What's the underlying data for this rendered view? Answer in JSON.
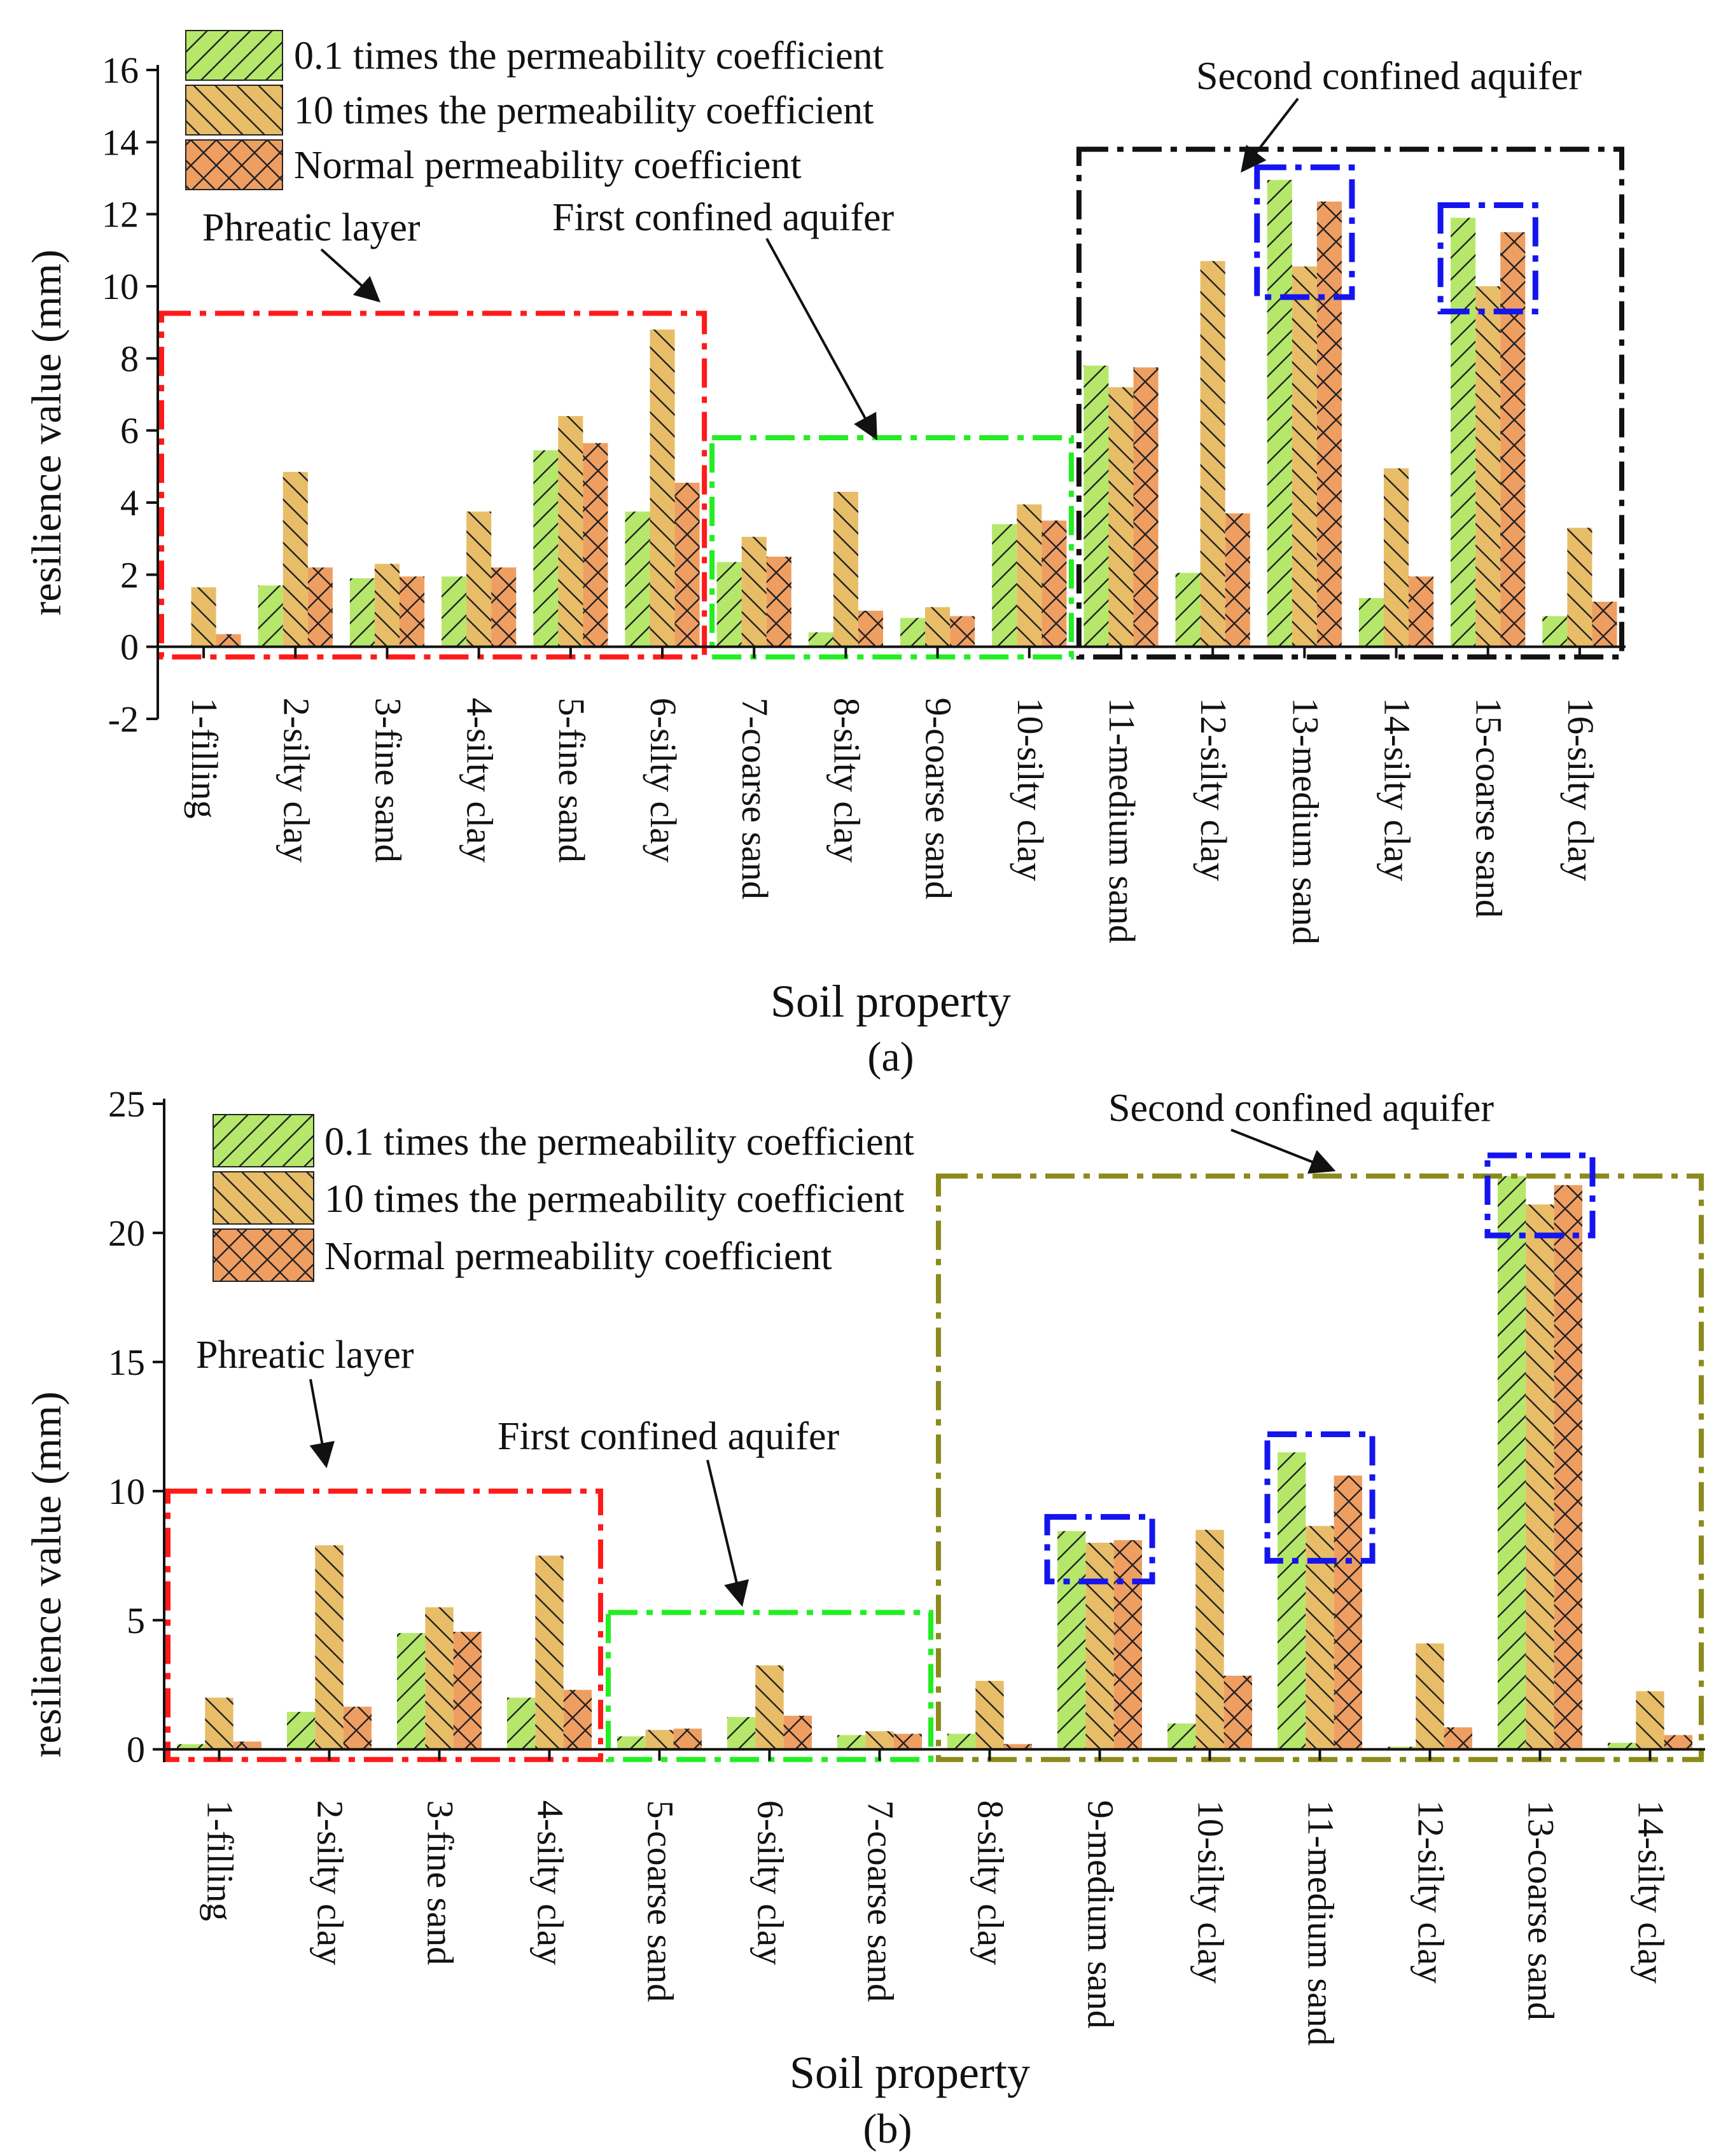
{
  "colors": {
    "green": "#b5e86a",
    "yellow": "#e8bd68",
    "orange": "#ef9e62",
    "axis": "#111111",
    "red_box": "#ff1a1a",
    "green_box": "#22ee22",
    "black_box": "#111111",
    "olive_box": "#8c8a1c",
    "blue_box": "#1414ee"
  },
  "chart_data": [
    {
      "type": "bar",
      "caption": "(a)",
      "xlabel": "Soil property",
      "ylabel": "resilience value (mm)",
      "ylim": [
        -2,
        16
      ],
      "yticks": [
        -2,
        0,
        2,
        4,
        6,
        8,
        10,
        12,
        14,
        16
      ],
      "categories": [
        "1-filling",
        "2-silty clay",
        "3-fine sand",
        "4-silty clay",
        "5-fine sand",
        "6-silty clay",
        "7-coarse sand",
        "8-silty clay",
        "9-coarse sand",
        "10-silty clay",
        "11-medium sand",
        "12-silty clay",
        "13-medium sand",
        "14-silty clay",
        "15-coarse sand",
        "16-silty clay"
      ],
      "series": [
        {
          "name": "0.1 times the permeability coefficient",
          "color": "green",
          "hatch": "fwd",
          "values": [
            0.0,
            1.7,
            1.9,
            1.95,
            5.45,
            3.75,
            2.35,
            0.4,
            0.8,
            3.4,
            7.8,
            2.05,
            12.95,
            1.35,
            11.9,
            0.85
          ]
        },
        {
          "name": "10 times the permeability coefficient",
          "color": "yellow",
          "hatch": "back",
          "values": [
            1.65,
            4.85,
            2.3,
            3.75,
            6.4,
            8.8,
            3.05,
            4.3,
            1.1,
            3.95,
            7.2,
            10.7,
            10.55,
            4.95,
            10.0,
            3.3
          ]
        },
        {
          "name": "Normal permeability coefficient",
          "color": "orange",
          "hatch": "cross",
          "values": [
            0.35,
            2.2,
            1.95,
            2.2,
            5.65,
            4.55,
            2.5,
            1.0,
            0.85,
            3.5,
            7.75,
            3.7,
            12.35,
            1.95,
            11.5,
            1.25
          ]
        }
      ],
      "regions": [
        {
          "label": "Phreatic layer",
          "style": "red_box",
          "from": 0,
          "to": 5,
          "top": 9.25
        },
        {
          "label": "First confined aquifer",
          "style": "green_box",
          "from": 6,
          "to": 9,
          "top": 5.8
        },
        {
          "label": "Second confined aquifer",
          "style": "black_box",
          "from": 10,
          "to": 15,
          "top": 13.8
        }
      ],
      "highlights": [
        {
          "category": 12,
          "low": 9.7,
          "high": 13.3
        },
        {
          "category": 14,
          "low": 9.3,
          "high": 12.25
        }
      ]
    },
    {
      "type": "bar",
      "caption": "(b)",
      "xlabel": "Soil property",
      "ylabel": "resilience value (mm)",
      "ylim": [
        -0.5,
        25
      ],
      "yticks": [
        0,
        5,
        10,
        15,
        20,
        25
      ],
      "categories": [
        "1-filling",
        "2-silty clay",
        "3-fine sand",
        "4-silty clay",
        "5-coarse sand",
        "6-silty clay",
        "7-coarse sand",
        "8-silty clay",
        "9-medium sand",
        "10-silty clay",
        "11-medium sand",
        "12-silty clay",
        "13-coarse sand",
        "14-silty clay"
      ],
      "series": [
        {
          "name": "0.1 times the permeability coefficient",
          "color": "green",
          "hatch": "fwd",
          "values": [
            0.2,
            1.45,
            4.5,
            2.0,
            0.5,
            1.25,
            0.55,
            0.6,
            8.45,
            1.0,
            11.5,
            0.1,
            22.2,
            0.25
          ]
        },
        {
          "name": "10 times the permeability coefficient",
          "color": "yellow",
          "hatch": "back",
          "values": [
            2.0,
            7.9,
            5.5,
            7.5,
            0.75,
            3.25,
            0.7,
            2.65,
            8.0,
            8.5,
            8.65,
            4.1,
            21.1,
            2.25
          ]
        },
        {
          "name": "Normal permeability coefficient",
          "color": "orange",
          "hatch": "cross",
          "values": [
            0.3,
            1.65,
            4.55,
            2.3,
            0.8,
            1.3,
            0.6,
            0.2,
            8.1,
            2.85,
            10.6,
            0.85,
            21.85,
            0.55
          ]
        }
      ],
      "regions": [
        {
          "label": "Phreatic layer",
          "style": "red_box",
          "from": 0,
          "to": 3,
          "top": 10.0
        },
        {
          "label": "First confined aquifer",
          "style": "green_box",
          "from": 4,
          "to": 6,
          "top": 5.3
        },
        {
          "label": "Second confined aquifer",
          "style": "olive_box",
          "from": 7,
          "to": 13,
          "top": 22.2
        }
      ],
      "highlights": [
        {
          "category": 8,
          "low": 6.5,
          "high": 9.0
        },
        {
          "category": 10,
          "low": 7.3,
          "high": 12.2
        },
        {
          "category": 12,
          "low": 19.9,
          "high": 23.0
        }
      ]
    }
  ]
}
